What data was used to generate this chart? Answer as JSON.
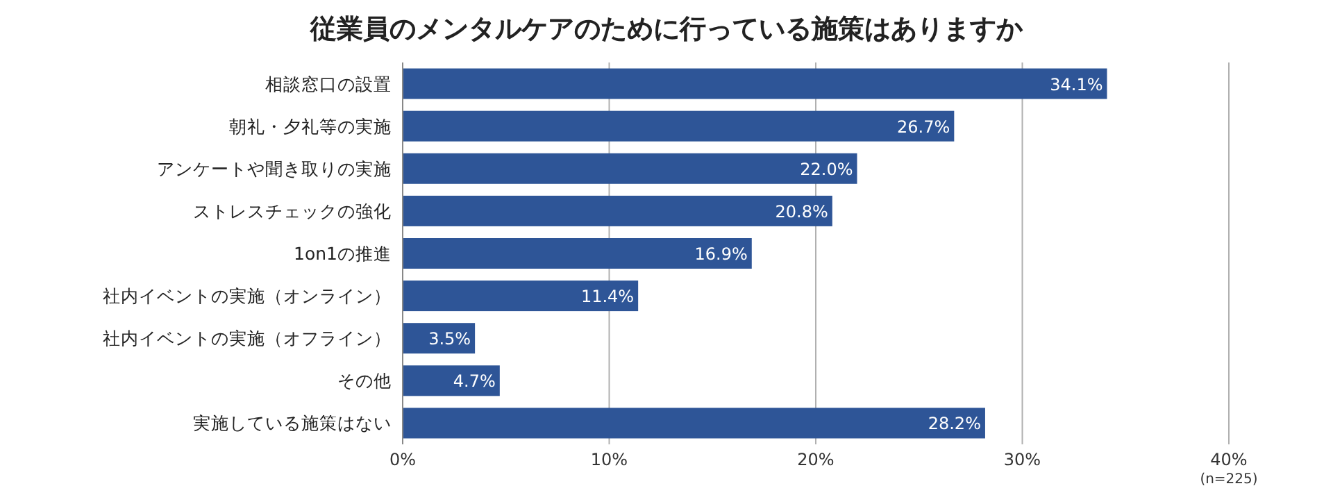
{
  "chart_data": {
    "type": "bar",
    "orientation": "horizontal",
    "title": "従業員のメンタルケアのために行っている施策はありますか",
    "categories": [
      "相談窓口の設置",
      "朝礼・夕礼等の実施",
      "アンケートや聞き取りの実施",
      "ストレスチェックの強化",
      "1on1の推進",
      "社内イベントの実施（オンライン）",
      "社内イベントの実施（オフライン）",
      "その他",
      "実施している施策はない"
    ],
    "values": [
      34.1,
      26.7,
      22.0,
      20.8,
      16.9,
      11.4,
      3.5,
      4.7,
      28.2
    ],
    "value_labels": [
      "34.1%",
      "26.7%",
      "22.0%",
      "20.8%",
      "16.9%",
      "11.4%",
      "3.5%",
      "4.7%",
      "28.2%"
    ],
    "color": "#2e5597",
    "xlim": [
      0,
      40
    ],
    "xticks": [
      {
        "value": 0,
        "label": "0%"
      },
      {
        "value": 10,
        "label": "10%"
      },
      {
        "value": 20,
        "label": "20%"
      },
      {
        "value": 30,
        "label": "30%"
      },
      {
        "value": 40,
        "label": "40%"
      }
    ],
    "grid": "x",
    "annotations": [
      "(n=225)"
    ]
  }
}
